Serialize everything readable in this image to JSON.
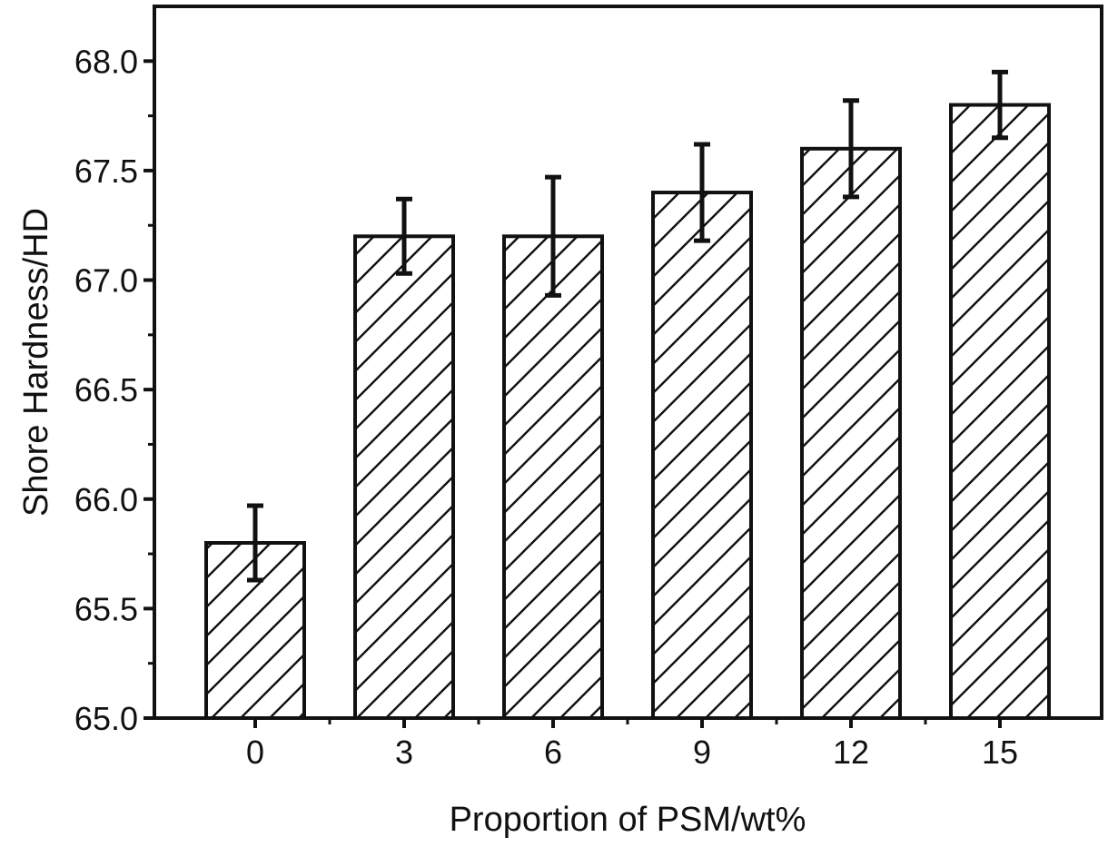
{
  "chart_data": {
    "type": "bar",
    "title": "",
    "xlabel": "Proportion of PSM/wt%",
    "ylabel": "Shore Hardness/HD",
    "categories": [
      "0",
      "3",
      "6",
      "9",
      "12",
      "15"
    ],
    "values": [
      65.8,
      67.2,
      67.2,
      67.4,
      67.6,
      67.8
    ],
    "errors": [
      0.17,
      0.17,
      0.27,
      0.22,
      0.22,
      0.15
    ],
    "ylim": [
      65.0,
      68.25
    ],
    "yticks": [
      "65.0",
      "65.5",
      "66.0",
      "66.5",
      "67.0",
      "67.5",
      "68.0"
    ],
    "pattern": "diagonal-hatch",
    "grid": false,
    "legend": "none",
    "colors": {
      "bar_edge": "#111111",
      "bar_fill": "#ffffff",
      "hatch": "#111111"
    }
  }
}
